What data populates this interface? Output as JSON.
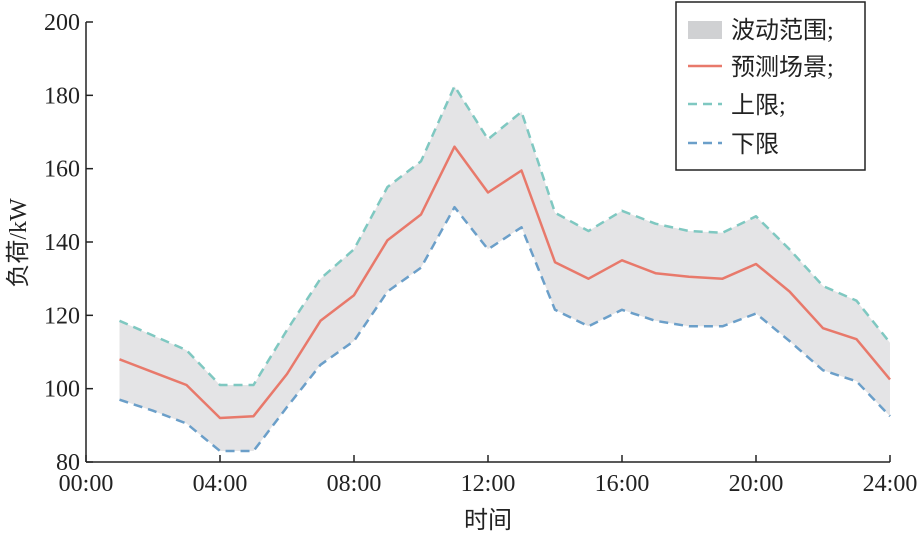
{
  "chart_data": {
    "type": "line",
    "title": "",
    "xlabel": "时间",
    "ylabel": "负荷/kW",
    "xlim": [
      0,
      24
    ],
    "ylim": [
      80,
      200
    ],
    "x_tick_labels": [
      "00:00",
      "04:00",
      "08:00",
      "12:00",
      "16:00",
      "20:00",
      "24:00"
    ],
    "y_tick_labels": [
      "80",
      "100",
      "120",
      "140",
      "160",
      "180",
      "200"
    ],
    "x_ticks": [
      0,
      4,
      8,
      12,
      16,
      20,
      24
    ],
    "y_ticks": [
      80,
      100,
      120,
      140,
      160,
      180,
      200
    ],
    "x": [
      1,
      2,
      3,
      4,
      5,
      6,
      7,
      8,
      9,
      10,
      11,
      12,
      13,
      14,
      15,
      16,
      17,
      18,
      19,
      20,
      21,
      22,
      23,
      24
    ],
    "legend_position": "top-right",
    "series": [
      {
        "name": "波动范围;",
        "kind": "band",
        "color": "#d9dadc",
        "lower": [
          97,
          94,
          90.5,
          83,
          83,
          95,
          106.5,
          113,
          126.5,
          133,
          149.5,
          138,
          144,
          121.5,
          117,
          121.5,
          118.5,
          117,
          117,
          120.5,
          113,
          105,
          102,
          92.5
        ],
        "upper": [
          118.5,
          114.5,
          110.5,
          101,
          101,
          116,
          130,
          138,
          155,
          162,
          182.5,
          168,
          175.5,
          148,
          143,
          148.5,
          145,
          143,
          142.5,
          147,
          138,
          128,
          124,
          112.5
        ]
      },
      {
        "name": "预测场景;",
        "kind": "line",
        "color": "#e8796b",
        "values": [
          108,
          104.5,
          101,
          92,
          92.5,
          104,
          118.5,
          125.5,
          140.5,
          147.5,
          166,
          153.5,
          159.5,
          134.5,
          130,
          135,
          131.5,
          130.5,
          130,
          134,
          126.5,
          116.5,
          113.5,
          102.5
        ]
      },
      {
        "name": "上限;",
        "kind": "dashed",
        "color": "#7fc8c1",
        "values": [
          118.5,
          114.5,
          110.5,
          101,
          101,
          116,
          130,
          138,
          155,
          162,
          182.5,
          168,
          175.5,
          148,
          143,
          148.5,
          145,
          143,
          142.5,
          147,
          138,
          128,
          124,
          112.5
        ]
      },
      {
        "name": "下限",
        "kind": "dashed",
        "color": "#6b9fc9",
        "values": [
          97,
          94,
          90.5,
          83,
          83,
          95,
          106.5,
          113,
          126.5,
          133,
          149.5,
          138,
          144,
          121.5,
          117,
          121.5,
          118.5,
          117,
          117,
          120.5,
          113,
          105,
          102,
          92.5
        ]
      }
    ]
  }
}
